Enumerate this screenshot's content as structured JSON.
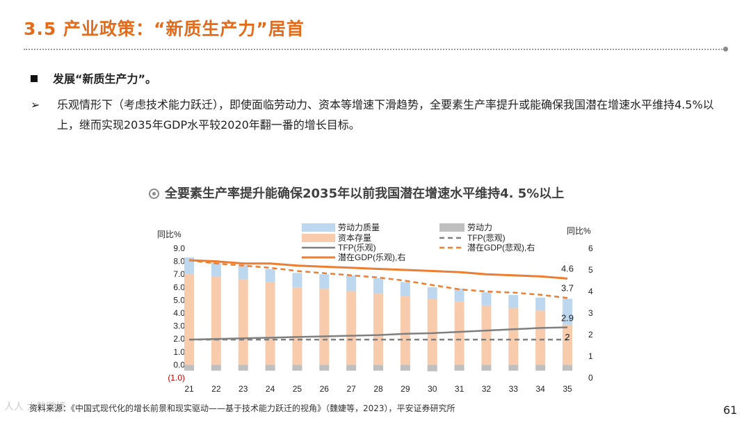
{
  "slide": {
    "title": "3.5 产业政策：“新质生产力”居首",
    "bullet1": "发展“新质生产力”。",
    "bullet2_marker": "➢",
    "bullet2": "乐观情形下（考虑技术能力跃迁），即使面临劳动力、资本等增速下滑趋势，全要素生产率提升或能确保我国潜在增速水平维持4.5%以上，继而实现2035年GDP水平较2020年翻一番的增长目标。",
    "chart_title": "全要素生产率提升能确保2035年以前我国潜在增速水平维持4. 5%以上",
    "footer": "资料来源：《中国式现代化的增长前景和现实驱动——基于技术能力跃迁的视角》（魏婕等，2023），平安证券研究所",
    "page_number": "61",
    "watermark": "人人 大数跨境"
  },
  "colors": {
    "title": "#e26b1c",
    "labor_quality": "#bdd7ee",
    "capital": "#f8cbad",
    "labor": "#bfbfbf",
    "tfp": "#7f7f7f",
    "gdp": "#ed7d31"
  },
  "chart_data": {
    "type": "bar",
    "categories": [
      "21",
      "22",
      "23",
      "24",
      "25",
      "26",
      "27",
      "28",
      "29",
      "30",
      "31",
      "32",
      "33",
      "34",
      "35"
    ],
    "ylabel_left": "同比%",
    "ylabel_right": "同比%",
    "yticks_left": [
      "9.0",
      "8.0",
      "7.0",
      "6.0",
      "5.0",
      "4.0",
      "3.0",
      "2.0",
      "1.0",
      "0.0",
      "(1.0)"
    ],
    "yticks_right": [
      "6",
      "5",
      "4",
      "3",
      "2",
      "1",
      "0"
    ],
    "ylim_left": [
      -1.0,
      9.0
    ],
    "ylim_right": [
      0,
      6
    ],
    "series": [
      {
        "name": "资本存量",
        "kind": "bar",
        "axis": "left",
        "values": [
          7.0,
          6.8,
          6.6,
          6.4,
          6.0,
          5.9,
          5.7,
          5.5,
          5.3,
          5.1,
          4.9,
          4.6,
          4.4,
          4.2,
          3.1
        ]
      },
      {
        "name": "劳动力质量",
        "kind": "bar",
        "axis": "left",
        "values": [
          1.3,
          1.2,
          1.1,
          1.0,
          1.1,
          1.1,
          1.2,
          1.2,
          1.1,
          0.9,
          1.0,
          1.0,
          1.0,
          1.0,
          2.0
        ]
      },
      {
        "name": "劳动力",
        "kind": "bar",
        "axis": "left",
        "values": [
          -0.45,
          -0.45,
          -0.45,
          -0.45,
          -0.45,
          -0.45,
          -0.45,
          -0.45,
          -0.45,
          -0.5,
          -0.45,
          -0.45,
          -0.45,
          -0.45,
          -0.45
        ]
      },
      {
        "name": "TFP(乐观)",
        "kind": "line",
        "axis": "left",
        "values": [
          1.95,
          2.0,
          2.05,
          2.1,
          2.15,
          2.2,
          2.25,
          2.3,
          2.4,
          2.45,
          2.55,
          2.65,
          2.75,
          2.85,
          2.9
        ]
      },
      {
        "name": "TFP(悲观)",
        "kind": "line",
        "axis": "left",
        "dashed": true,
        "values": [
          1.95,
          1.95,
          1.95,
          1.95,
          1.95,
          1.95,
          1.95,
          1.95,
          1.95,
          1.95,
          1.95,
          1.95,
          1.95,
          1.95,
          1.95
        ]
      },
      {
        "name": "潜在GDP(乐观),右",
        "kind": "line",
        "axis": "right",
        "values": [
          5.45,
          5.4,
          5.3,
          5.3,
          5.2,
          5.15,
          5.1,
          5.05,
          5.0,
          4.95,
          4.9,
          4.8,
          4.75,
          4.7,
          4.6
        ]
      },
      {
        "name": "潜在GDP(悲观),右",
        "kind": "line",
        "axis": "right",
        "dashed": true,
        "values": [
          5.45,
          5.3,
          5.2,
          5.1,
          4.95,
          4.85,
          4.75,
          4.65,
          4.5,
          4.3,
          4.1,
          4.0,
          3.95,
          3.85,
          3.7
        ]
      }
    ],
    "end_labels": [
      "4.6",
      "3.7",
      "2.9",
      "2"
    ]
  }
}
